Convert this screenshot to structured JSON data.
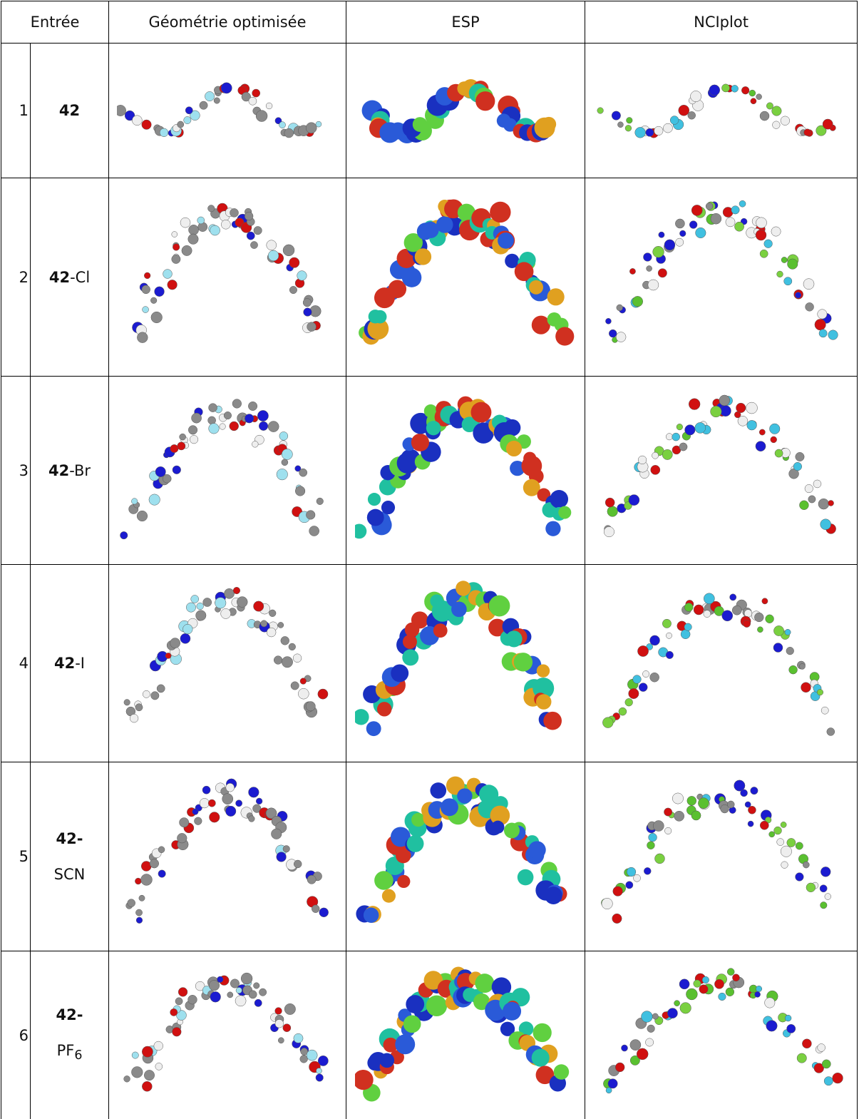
{
  "table": {
    "header": {
      "entry": "Entrée",
      "geometry": "Géométrie optimisée",
      "esp": "ESP",
      "nci": "NCIplot"
    },
    "rows": [
      {
        "number": "1",
        "compound": "42"
      },
      {
        "number": "2",
        "compound": "42",
        "suffix": "-Cl"
      },
      {
        "number": "3",
        "compound": "42",
        "suffix": "-Br"
      },
      {
        "number": "4",
        "compound": "42",
        "suffix": "-I"
      },
      {
        "number": "5",
        "compound": "42-",
        "suffix": "SCN"
      },
      {
        "number": "6",
        "compound": "42-",
        "suffix": "PF",
        "subscript": "6"
      }
    ]
  }
}
